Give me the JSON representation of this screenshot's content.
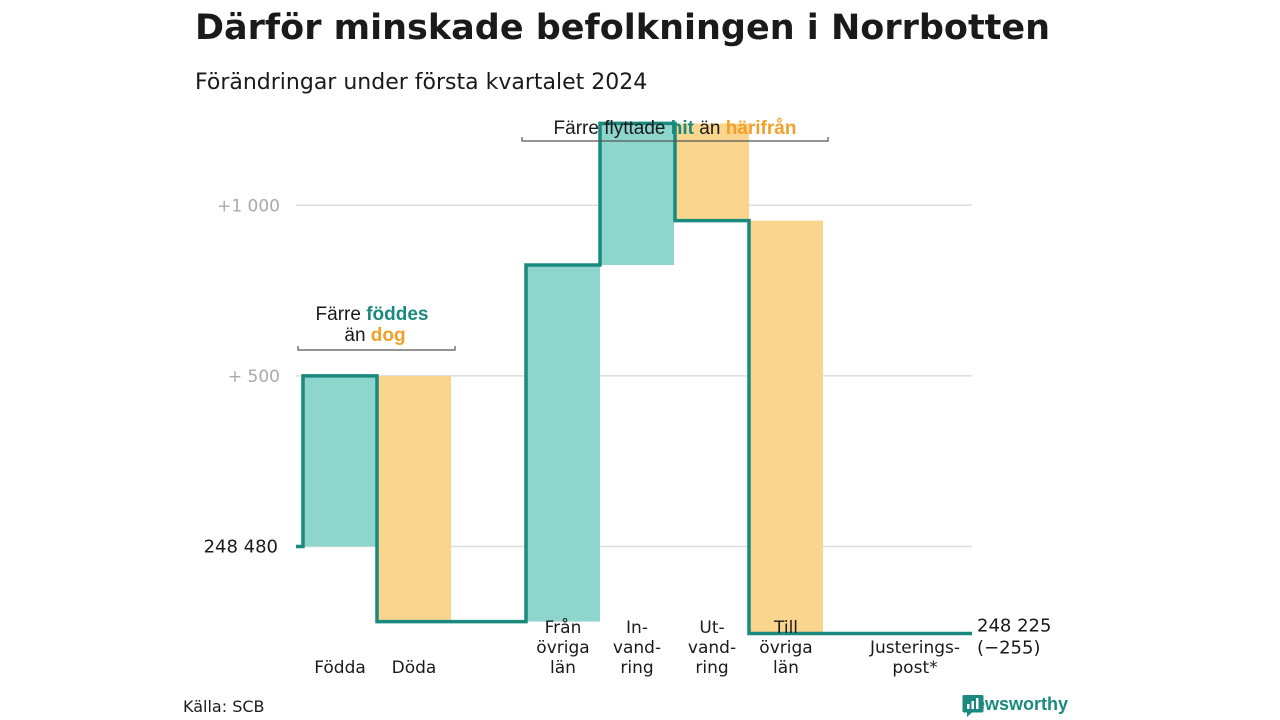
{
  "title": "Därför minskade befolkningen i Norrbotten",
  "subtitle": "Förändringar under första kvartalet 2024",
  "source": "Källa: SCB",
  "brand": "Newsworthy",
  "colors": {
    "increase": "#8dd5cd",
    "decrease": "#fad58e",
    "line": "#1a8a7e",
    "accent_orange": "#f2a02a",
    "grid": "#dddddd"
  },
  "annotations": {
    "migration": {
      "prefix": "Färre flyttade",
      "hit": "hit",
      "middle": "än",
      "harifran": "härifrån"
    },
    "births": {
      "line1_prefix": "Färre",
      "line1_accent": "föddes",
      "line2_prefix": "än",
      "line2_accent": "dog"
    }
  },
  "chart_data": {
    "type": "waterfall",
    "start_value": 248480,
    "start_label": "248 480",
    "end_value": 248225,
    "end_label": "248 225",
    "end_change_label": "(−255)",
    "y_ticks": [
      {
        "label": "+1 000",
        "value": 249480
      },
      {
        "label": "+ 500",
        "value": 248980
      }
    ],
    "ylim": [
      248250,
      249730
    ],
    "steps": [
      {
        "label": "Födda",
        "delta": 500
      },
      {
        "label": "Döda",
        "delta": -720
      },
      {
        "label": "Från övriga län",
        "delta": 1045
      },
      {
        "label": "Invandring",
        "delta": 415
      },
      {
        "label": "Utvandring",
        "delta": -285
      },
      {
        "label": "Till övriga län",
        "delta": -1210
      },
      {
        "label": "Justeringspost*",
        "delta": 0
      }
    ],
    "category_label_lines": [
      [
        "Födda"
      ],
      [
        "Döda"
      ],
      [
        "",
        "Från",
        "övriga",
        "län"
      ],
      [
        "",
        "In-",
        "vand-",
        "ring"
      ],
      [
        "",
        "Ut-",
        "vand-",
        "ring"
      ],
      [
        "",
        "Till",
        "övriga",
        "län"
      ],
      [
        "",
        "",
        "Justerings-",
        "post*"
      ]
    ]
  }
}
